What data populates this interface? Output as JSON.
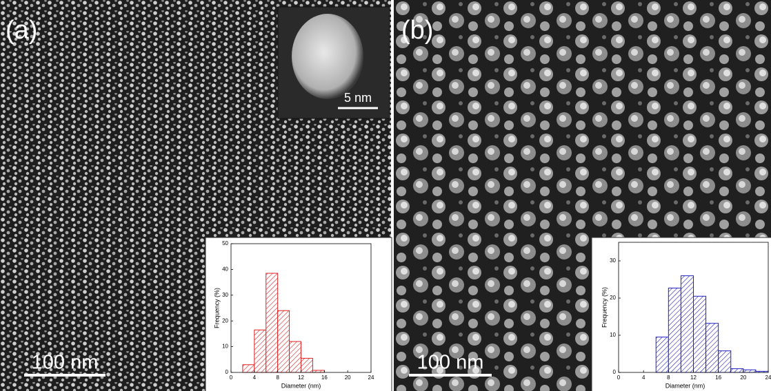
{
  "chart_data": [
    {
      "type": "histogram",
      "panel_label": "(a)",
      "scale_bar": "100 nm",
      "inset_scale_bar": "5 nm",
      "xlabel": "Diameter (nm)",
      "ylabel": "Frequency (%)",
      "bins": [
        2,
        4,
        6,
        8,
        10,
        12,
        14,
        16
      ],
      "values": [
        3,
        16.5,
        38.5,
        24,
        12,
        5.5,
        0.8
      ],
      "color": "#e02020",
      "xlim": [
        0,
        24
      ],
      "ylim": [
        0,
        50
      ],
      "xticks": [
        0,
        4,
        8,
        12,
        16,
        20,
        24
      ],
      "yticks": [
        0,
        10,
        20,
        30,
        40,
        50
      ]
    },
    {
      "type": "histogram",
      "panel_label": "(b)",
      "scale_bar": "100 nm",
      "xlabel": "Diameter (nm)",
      "ylabel": "Frequency (%)",
      "bins": [
        6,
        8,
        10,
        12,
        14,
        16,
        18,
        20,
        22,
        24
      ],
      "values": [
        9.5,
        22.7,
        26,
        20.5,
        13.2,
        5.8,
        1,
        0.7,
        0.3
      ],
      "color": "#2020c0",
      "xlim": [
        0,
        24
      ],
      "ylim": [
        0,
        35
      ],
      "xticks": [
        0,
        4,
        8,
        12,
        16,
        20,
        24
      ],
      "yticks": [
        0,
        10,
        20,
        30
      ]
    }
  ]
}
